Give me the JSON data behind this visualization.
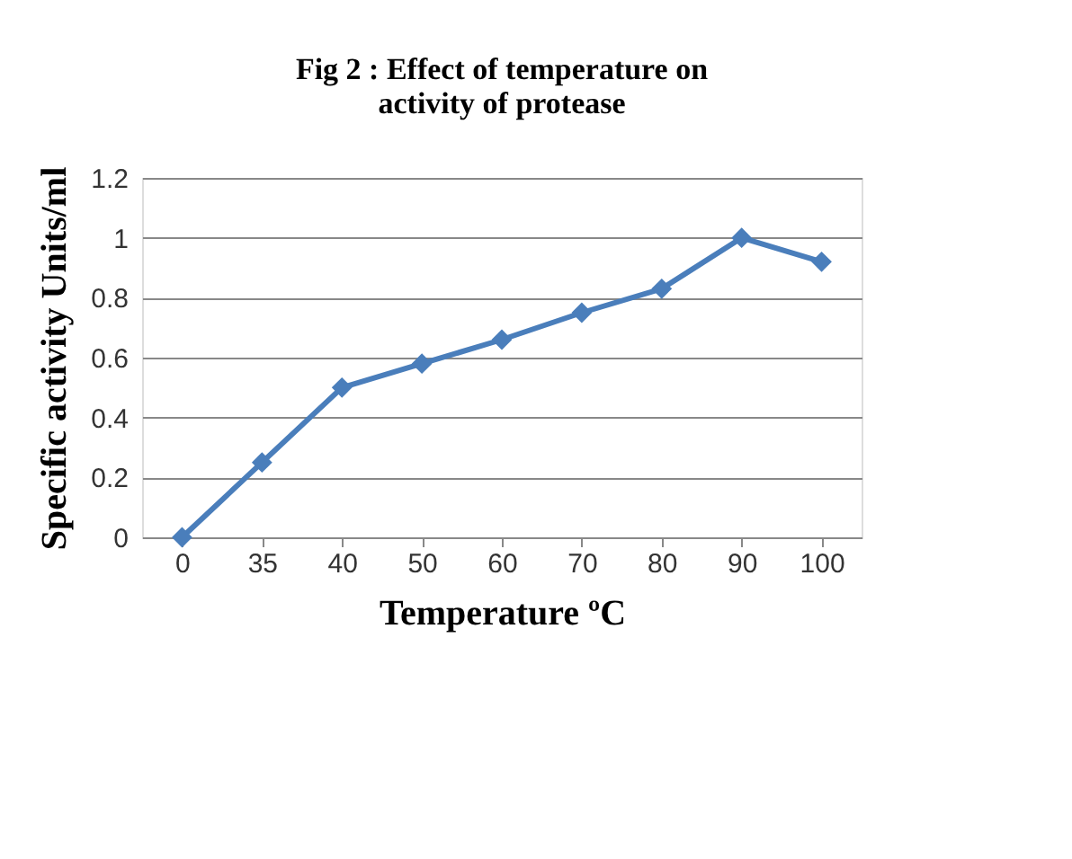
{
  "chart_data": {
    "type": "line",
    "title": "Fig 2 : Effect of temperature on\nactivity of protease",
    "xlabel": "Temperature ºC",
    "ylabel": "Specific activity Units/ml",
    "categories": [
      "0",
      "35",
      "40",
      "50",
      "60",
      "70",
      "80",
      "90",
      "100"
    ],
    "series": [
      {
        "color": "#4a7ebb",
        "values": [
          0,
          0.25,
          0.5,
          0.58,
          0.66,
          0.75,
          0.83,
          1.0,
          0.92
        ]
      }
    ],
    "ylim": [
      0,
      1.2
    ],
    "yticks": [
      0,
      0.2,
      0.4,
      0.6,
      0.8,
      1,
      1.2
    ],
    "grid": "y",
    "marker": "diamond",
    "line_style": "solid"
  }
}
